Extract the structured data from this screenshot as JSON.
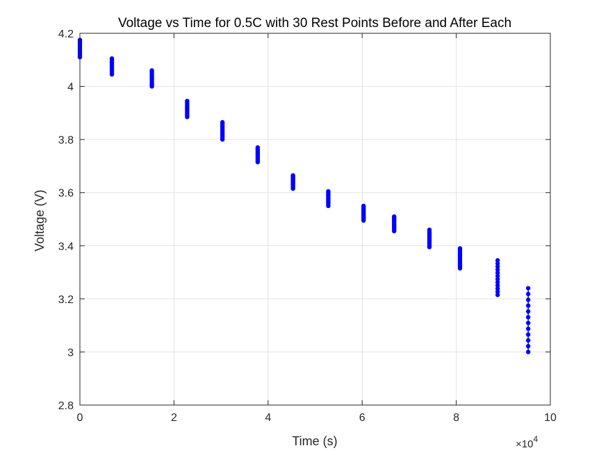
{
  "chart_data": {
    "type": "scatter",
    "title": "Voltage vs Time for 0.5C with 30 Rest Points Before and After Each",
    "xlabel": "Time (s)",
    "ylabel": "Voltage (V)",
    "x_exponent_label": "×10",
    "x_exponent_power": "4",
    "xlim": [
      0,
      100000
    ],
    "ylim": [
      2.8,
      4.2
    ],
    "x_ticks": [
      0,
      20000,
      40000,
      60000,
      80000,
      100000
    ],
    "x_tick_labels": [
      "0",
      "2",
      "4",
      "6",
      "8",
      "10"
    ],
    "y_ticks": [
      2.8,
      3.0,
      3.2,
      3.4,
      3.6,
      3.8,
      4.0,
      4.2
    ],
    "y_tick_labels": [
      "2.8",
      "3",
      "3.2",
      "3.4",
      "3.6",
      "3.8",
      "4",
      "4.2"
    ],
    "grid": true,
    "marker_color": "#0000ff",
    "grid_color": "#e3e3e3",
    "axis_color": "#262626",
    "series": [
      {
        "clusters": [
          {
            "x": 0,
            "y_min": 4.11,
            "y_max": 4.175
          },
          {
            "x": 6800,
            "y_min": 4.045,
            "y_max": 4.105
          },
          {
            "x": 15300,
            "y_min": 4.0,
            "y_max": 4.06
          },
          {
            "x": 22800,
            "y_min": 3.885,
            "y_max": 3.945
          },
          {
            "x": 30300,
            "y_min": 3.8,
            "y_max": 3.865
          },
          {
            "x": 37800,
            "y_min": 3.715,
            "y_max": 3.77
          },
          {
            "x": 45300,
            "y_min": 3.615,
            "y_max": 3.665
          },
          {
            "x": 52800,
            "y_min": 3.55,
            "y_max": 3.605
          },
          {
            "x": 60300,
            "y_min": 3.495,
            "y_max": 3.55
          },
          {
            "x": 66800,
            "y_min": 3.455,
            "y_max": 3.51
          },
          {
            "x": 74300,
            "y_min": 3.395,
            "y_max": 3.46
          },
          {
            "x": 80800,
            "y_min": 3.315,
            "y_max": 3.39
          },
          {
            "x": 88800,
            "y_min": 3.215,
            "y_max": 3.345
          },
          {
            "x": 95300,
            "y_min": 3.0,
            "y_max": 3.24
          }
        ]
      }
    ]
  }
}
